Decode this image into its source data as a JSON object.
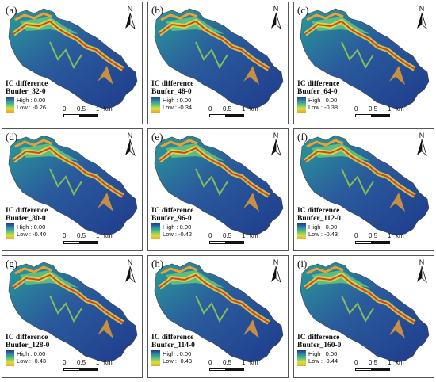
{
  "legend_title": "IC difference",
  "high_label": "High : 0.00",
  "low_prefix": "Low : ",
  "north_label": "N",
  "scale": {
    "ticks": [
      "0",
      "0.5",
      "1"
    ],
    "unit": "km"
  },
  "colors": {
    "high": "#1f3b8c",
    "low": "#f0a030",
    "mid": "#56c17a",
    "peak": "#d94020"
  },
  "panels": [
    {
      "label": "(a)",
      "buffer": "Buufer_32-0",
      "low": "-0.26"
    },
    {
      "label": "(b)",
      "buffer": "Buufer_48-0",
      "low": "-0.34"
    },
    {
      "label": "(c)",
      "buffer": "Buufer_64-0",
      "low": "-0.38"
    },
    {
      "label": "(d)",
      "buffer": "Buufer_80-0",
      "low": "-0.40"
    },
    {
      "label": "(e)",
      "buffer": "Buufer_96-0",
      "low": "-0.42"
    },
    {
      "label": "(f)",
      "buffer": "Buufer_112-0",
      "low": "-0.43"
    },
    {
      "label": "(g)",
      "buffer": "Buufer_128-0",
      "low": "-0.43"
    },
    {
      "label": "(h)",
      "buffer": "Buufer_114-0",
      "low": "-0.43"
    },
    {
      "label": "(i)",
      "buffer": "Buufer_160-0",
      "low": "-0.44"
    }
  ]
}
